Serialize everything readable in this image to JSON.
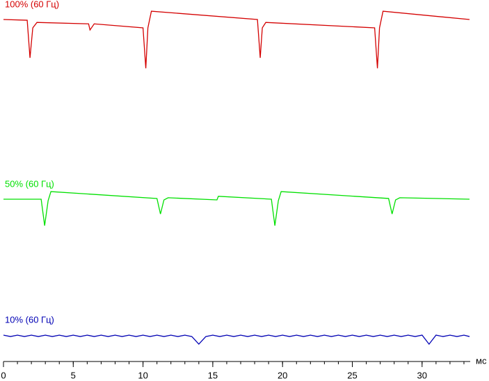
{
  "chart_data": {
    "type": "line",
    "x_label": "мс",
    "xlim": [
      0,
      33.4
    ],
    "xticks": [
      0,
      5,
      10,
      15,
      20,
      25,
      30
    ],
    "xminorticks": [
      0,
      1,
      2,
      3,
      4,
      5,
      6,
      7,
      8,
      9,
      10,
      11,
      12,
      13,
      14,
      15,
      16,
      17,
      18,
      19,
      20,
      21,
      22,
      23,
      24,
      25,
      26,
      27,
      28,
      29,
      30,
      31,
      32,
      33
    ],
    "ylim": [
      0,
      100
    ],
    "series": [
      {
        "name": "100% (60 Гц)",
        "color": "#d40000",
        "x": [
          0,
          1.7,
          1.9,
          2.1,
          2.4,
          6.1,
          6.2,
          6.5,
          10.0,
          10.2,
          10.35,
          10.6,
          18.2,
          18.4,
          18.55,
          18.8,
          26.6,
          26.8,
          26.95,
          27.2,
          33.4
        ],
        "values": [
          94.6,
          94.4,
          84.0,
          92.3,
          93.8,
          93.4,
          91.7,
          93.4,
          92.3,
          81.1,
          92.3,
          96.9,
          94.6,
          84.0,
          92.3,
          93.8,
          92.3,
          81.1,
          92.3,
          96.9,
          94.6
        ]
      },
      {
        "name": "50% (60 Гц)",
        "color": "#00e000",
        "x": [
          0,
          2.7,
          2.95,
          3.2,
          3.4,
          11.0,
          11.25,
          11.5,
          11.8,
          15.3,
          15.4,
          19.2,
          19.45,
          19.7,
          19.9,
          27.6,
          27.85,
          28.1,
          28.4,
          33.4
        ],
        "values": [
          44.9,
          44.9,
          37.6,
          44.5,
          47.0,
          45.1,
          40.8,
          44.7,
          45.3,
          44.7,
          45.7,
          44.9,
          37.6,
          44.5,
          47.0,
          45.1,
          40.8,
          44.7,
          45.3,
          44.9
        ]
      },
      {
        "name": "10% (60 Гц)",
        "color": "#0000b4",
        "x": [
          0,
          0.5,
          1,
          1.5,
          2,
          2.5,
          3,
          3.5,
          4,
          4.5,
          5,
          5.5,
          6,
          6.5,
          7,
          7.5,
          8,
          8.5,
          9,
          9.5,
          10,
          10.5,
          11,
          11.5,
          12,
          12.5,
          13,
          13.5,
          14,
          14.5,
          15,
          15.5,
          16,
          16.5,
          17,
          17.5,
          18,
          18.5,
          19,
          19.5,
          20,
          20.5,
          21,
          21.5,
          22,
          22.5,
          23,
          23.5,
          24,
          24.5,
          25,
          25.5,
          26,
          26.5,
          27,
          27.5,
          28,
          28.5,
          29,
          29.5,
          30,
          30.5,
          31,
          31.5,
          32,
          32.5,
          33,
          33.4
        ],
        "values": [
          7.3,
          6.9,
          7.3,
          6.9,
          7.3,
          6.9,
          7.3,
          6.9,
          7.3,
          6.9,
          7.3,
          6.9,
          7.3,
          6.9,
          7.3,
          6.9,
          7.3,
          6.9,
          7.3,
          6.9,
          7.3,
          6.9,
          7.3,
          6.9,
          7.3,
          6.9,
          7.3,
          6.9,
          4.8,
          6.9,
          7.3,
          6.9,
          7.3,
          6.9,
          7.3,
          6.9,
          7.3,
          6.9,
          7.3,
          6.9,
          7.3,
          6.9,
          7.3,
          6.9,
          7.3,
          6.9,
          7.3,
          6.9,
          7.3,
          6.9,
          7.3,
          6.9,
          7.3,
          6.9,
          7.3,
          6.9,
          7.3,
          6.9,
          7.3,
          6.9,
          7.3,
          4.8,
          7.3,
          6.9,
          7.3,
          6.9,
          7.3,
          6.9
        ]
      }
    ]
  }
}
